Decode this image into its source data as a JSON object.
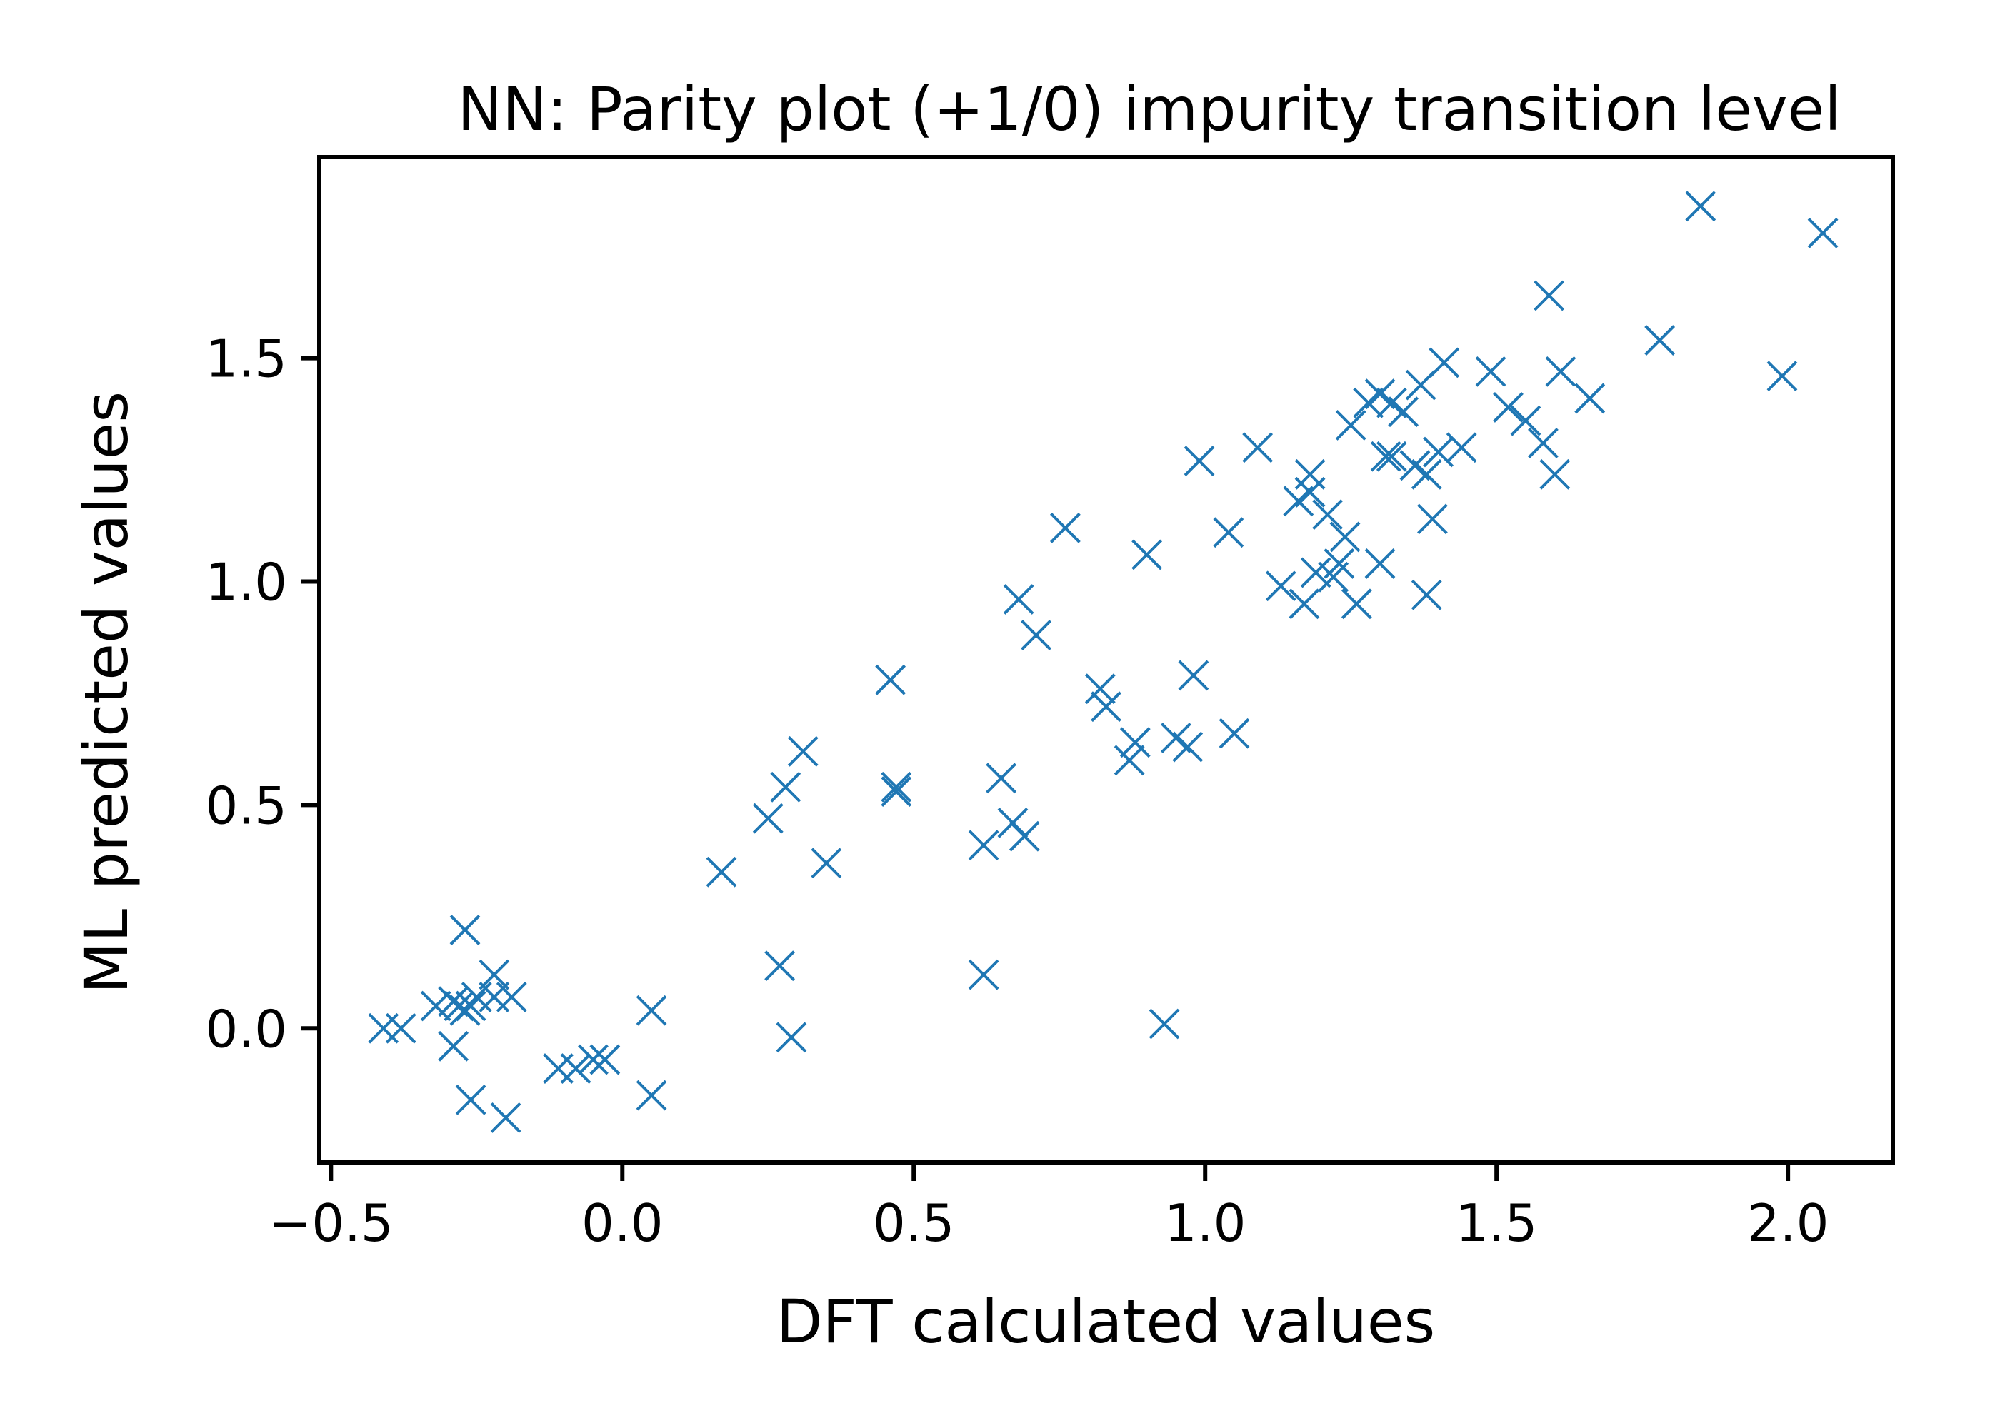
{
  "chart_data": {
    "type": "scatter",
    "title": "NN: Parity plot (+1/0) impurity transition level",
    "xlabel": "DFT calculated values",
    "ylabel": "ML predicted values",
    "xlim": [
      -0.52,
      2.18
    ],
    "ylim": [
      -0.3,
      1.95
    ],
    "xticks": [
      {
        "value": -0.5,
        "label": "−0.5"
      },
      {
        "value": 0.0,
        "label": "0.0"
      },
      {
        "value": 0.5,
        "label": "0.5"
      },
      {
        "value": 1.0,
        "label": "1.0"
      },
      {
        "value": 1.5,
        "label": "1.5"
      },
      {
        "value": 2.0,
        "label": "2.0"
      }
    ],
    "yticks": [
      {
        "value": 0.0,
        "label": "0.0"
      },
      {
        "value": 0.5,
        "label": "0.5"
      },
      {
        "value": 1.0,
        "label": "1.0"
      },
      {
        "value": 1.5,
        "label": "1.5"
      }
    ],
    "grid": false,
    "marker": "x",
    "color": "#1f77b4",
    "points": [
      [
        -0.41,
        0.0
      ],
      [
        -0.38,
        0.0
      ],
      [
        -0.32,
        0.05
      ],
      [
        -0.29,
        0.06
      ],
      [
        -0.28,
        0.05
      ],
      [
        -0.27,
        0.04
      ],
      [
        -0.26,
        0.05
      ],
      [
        -0.25,
        0.07
      ],
      [
        -0.29,
        -0.04
      ],
      [
        -0.27,
        0.22
      ],
      [
        -0.26,
        -0.16
      ],
      [
        -0.22,
        0.12
      ],
      [
        -0.22,
        0.07
      ],
      [
        -0.19,
        0.07
      ],
      [
        -0.2,
        -0.2
      ],
      [
        -0.11,
        -0.09
      ],
      [
        -0.08,
        -0.09
      ],
      [
        -0.05,
        -0.07
      ],
      [
        -0.03,
        -0.07
      ],
      [
        0.05,
        0.04
      ],
      [
        0.05,
        -0.15
      ],
      [
        0.17,
        0.35
      ],
      [
        0.25,
        0.47
      ],
      [
        0.28,
        0.54
      ],
      [
        0.31,
        0.62
      ],
      [
        0.35,
        0.37
      ],
      [
        0.27,
        0.14
      ],
      [
        0.29,
        -0.02
      ],
      [
        0.46,
        0.78
      ],
      [
        0.47,
        0.54
      ],
      [
        0.47,
        0.53
      ],
      [
        0.62,
        0.41
      ],
      [
        0.65,
        0.56
      ],
      [
        0.67,
        0.46
      ],
      [
        0.69,
        0.43
      ],
      [
        0.62,
        0.12
      ],
      [
        0.68,
        0.96
      ],
      [
        0.71,
        0.88
      ],
      [
        0.76,
        1.12
      ],
      [
        0.82,
        0.76
      ],
      [
        0.83,
        0.72
      ],
      [
        0.87,
        0.6
      ],
      [
        0.88,
        0.64
      ],
      [
        0.9,
        1.06
      ],
      [
        0.93,
        0.01
      ],
      [
        0.95,
        0.65
      ],
      [
        0.97,
        0.63
      ],
      [
        0.98,
        0.79
      ],
      [
        0.99,
        1.27
      ],
      [
        1.04,
        1.11
      ],
      [
        1.05,
        0.66
      ],
      [
        1.09,
        1.3
      ],
      [
        1.13,
        0.99
      ],
      [
        1.16,
        1.18
      ],
      [
        1.17,
        0.95
      ],
      [
        1.18,
        1.2
      ],
      [
        1.18,
        1.24
      ],
      [
        1.19,
        1.02
      ],
      [
        1.21,
        1.15
      ],
      [
        1.22,
        1.01
      ],
      [
        1.23,
        1.04
      ],
      [
        1.24,
        1.1
      ],
      [
        1.26,
        0.95
      ],
      [
        1.25,
        1.35
      ],
      [
        1.28,
        1.4
      ],
      [
        1.3,
        1.42
      ],
      [
        1.3,
        1.04
      ],
      [
        1.31,
        1.28
      ],
      [
        1.32,
        1.28
      ],
      [
        1.32,
        1.4
      ],
      [
        1.34,
        1.38
      ],
      [
        1.36,
        1.26
      ],
      [
        1.37,
        1.44
      ],
      [
        1.38,
        1.24
      ],
      [
        1.39,
        1.14
      ],
      [
        1.38,
        0.97
      ],
      [
        1.4,
        1.29
      ],
      [
        1.41,
        1.49
      ],
      [
        1.44,
        1.3
      ],
      [
        1.49,
        1.47
      ],
      [
        1.52,
        1.39
      ],
      [
        1.55,
        1.36
      ],
      [
        1.58,
        1.31
      ],
      [
        1.59,
        1.64
      ],
      [
        1.6,
        1.24
      ],
      [
        1.61,
        1.47
      ],
      [
        1.66,
        1.41
      ],
      [
        1.78,
        1.54
      ],
      [
        1.85,
        1.84
      ],
      [
        1.99,
        1.46
      ],
      [
        2.06,
        1.78
      ]
    ]
  }
}
